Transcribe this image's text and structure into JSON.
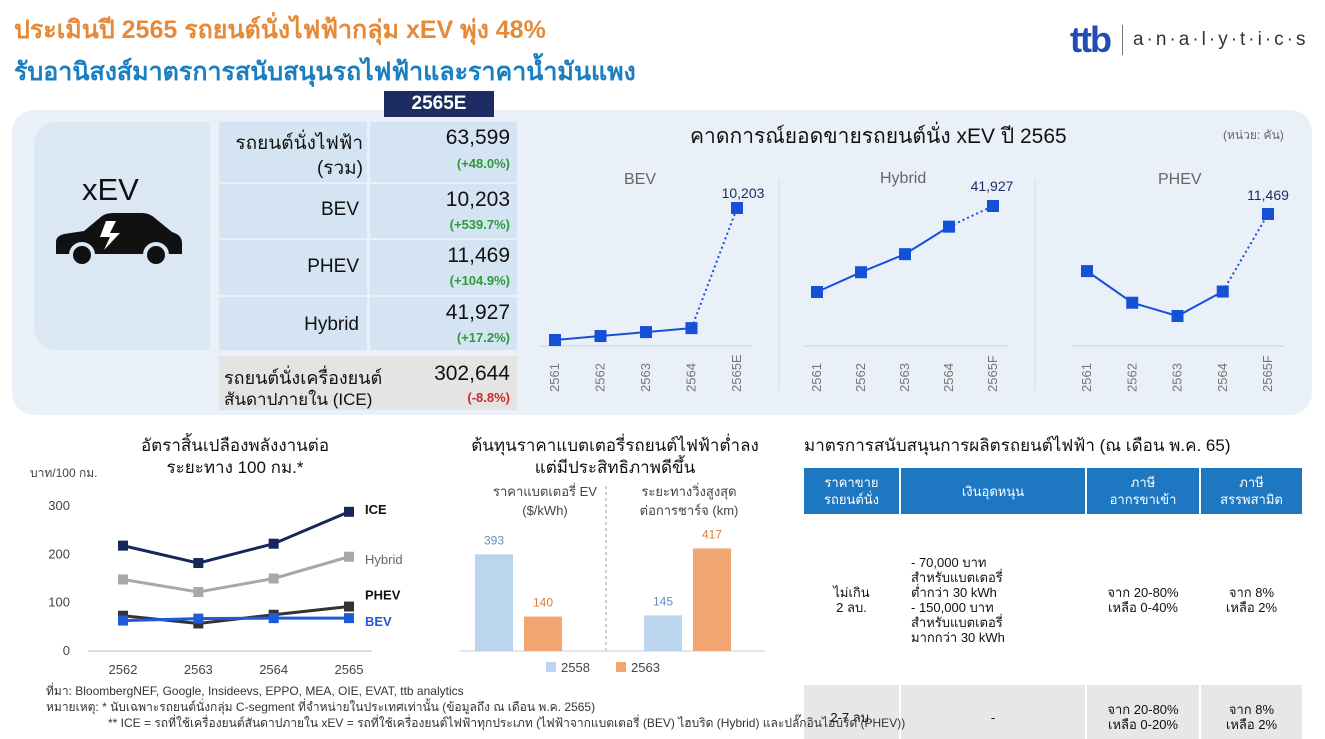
{
  "header": {
    "title": "ประเมินปี 2565 รถยนต์นั่งไฟฟ้ากลุ่ม xEV พุ่ง 48%",
    "subtitle": "รับอานิสงส์มาตรการสนับสนุนรถไฟฟ้าและราคาน้ำมันแพง",
    "brand": "ttb",
    "brand_sub": "a·n·a·l·y·t·i·c·s"
  },
  "summary": {
    "year_badge": "2565E",
    "xev_label": "xEV",
    "icon": "electric-car-icon",
    "rows": [
      {
        "label1": "รถยนต์นั่งไฟฟ้า",
        "label2": "(รวม)",
        "value": "63,599",
        "change": "(+48.0%)"
      },
      {
        "label1": "BEV",
        "label2": "",
        "value": "10,203",
        "change": "(+539.7%)"
      },
      {
        "label1": "PHEV",
        "label2": "",
        "value": "11,469",
        "change": "(+104.9%)"
      },
      {
        "label1": "Hybrid",
        "label2": "",
        "value": "41,927",
        "change": "(+17.2%)"
      },
      {
        "label1": "รถยนต์นั่งเครื่องยนต์",
        "label2": "สันดาปภายใน (ICE)",
        "value": "302,644",
        "change": "(-8.8%)"
      }
    ],
    "colors": {
      "positive": "#2e9a3a",
      "negative": "#d02828"
    }
  },
  "sales_section": {
    "title": "คาดการณ์ยอดขายรถยนต์นั่ง xEV ปี 2565",
    "unit": "(หน่วย: คัน)"
  },
  "fuel_section": {
    "title1": "อัตราสิ้นเปลืองพลังงานต่อ",
    "title2": "ระยะทาง 100 กม.*"
  },
  "battery_section": {
    "title1": "ต้นทุนราคาแบตเตอรี่รถยนต์ไฟฟ้าต่ำลง",
    "title2": "แต่มีประสิทธิภาพดีขึ้น"
  },
  "measures": {
    "title": "มาตรการสนับสนุนการผลิตรถยนต์ไฟฟ้า (ณ เดือน พ.ค. 65)",
    "headers": [
      "ราคาขาย\nรถยนต์นั่ง",
      "เงินอุดหนุน",
      "ภาษี\nอากรขาเข้า",
      "ภาษี\nสรรพสามิต"
    ],
    "rows": [
      {
        "price": "ไม่เกิน\n2 ลบ.",
        "subsidy_lines": [
          "-   70,000 บาท",
          "    สำหรับแบตเตอรี่",
          "    ต่ำกว่า 30 kWh",
          "-   150,000 บาท",
          "    สำหรับแบตเตอรี่",
          "    มากกว่า 30 kWh"
        ],
        "import_tax": "จาก 20-80%\nเหลือ 0-40%",
        "excise_tax": "จาก 8%\nเหลือ 2%"
      },
      {
        "price": "2-7 ลบ.",
        "subsidy_lines": [
          "-"
        ],
        "import_tax": "จาก 20-80%\nเหลือ 0-20%",
        "excise_tax": "จาก 8%\nเหลือ 2%"
      }
    ]
  },
  "footnotes": {
    "source": "ที่มา: BloombergNEF, Google, Insideevs, EPPO, MEA, OIE, EVAT, ttb analytics",
    "note1": "หมายเหตุ: * นับเฉพาะรถยนต์นั่งกลุ่ม C-segment ที่จำหน่ายในประเทศเท่านั้น (ข้อมูลถึง ณ เดือน พ.ค. 2565)",
    "note2": "** ICE = รถที่ใช้เครื่องยนต์สันดาปภายใน xEV = รถที่ใช้เครื่องยนต์ไฟฟ้าทุกประเภท (ไฟฟ้าจากแบตเตอรี่ (BEV) ไฮบริด (Hybrid) และปลั๊กอินไฮบริด (PHEV))"
  },
  "chart_data": [
    {
      "type": "line",
      "title": "BEV",
      "categories": [
        "2561",
        "2562",
        "2563",
        "2564",
        "2565E"
      ],
      "values": [
        null,
        null,
        null,
        null,
        10203
      ],
      "value_labels": [
        "",
        "",
        "",
        "",
        "10,203"
      ],
      "forecast_from_index": 3,
      "color": "#1550d8"
    },
    {
      "type": "line",
      "title": "Hybrid",
      "categories": [
        "2561",
        "2562",
        "2563",
        "2564",
        "2565F"
      ],
      "values": [
        null,
        null,
        null,
        null,
        41927
      ],
      "value_labels": [
        "",
        "",
        "",
        "",
        "41,927"
      ],
      "forecast_from_index": 3,
      "color": "#1550d8"
    },
    {
      "type": "line",
      "title": "PHEV",
      "categories": [
        "2561",
        "2562",
        "2563",
        "2564",
        "2565F"
      ],
      "values": [
        null,
        null,
        null,
        null,
        11469
      ],
      "value_labels": [
        "",
        "",
        "",
        "",
        "11,469"
      ],
      "forecast_from_index": 3,
      "color": "#1550d8"
    },
    {
      "type": "line",
      "title": "",
      "ylabel": "บาท/100 กม.",
      "categories": [
        "2562",
        "2563",
        "2564",
        "2565"
      ],
      "ylim": [
        0,
        300
      ],
      "yticks": [
        0,
        100,
        200,
        300
      ],
      "series": [
        {
          "name": "ICE",
          "values": [
            218,
            182,
            222,
            288
          ],
          "color": "#14285a"
        },
        {
          "name": "Hybrid",
          "values": [
            148,
            122,
            150,
            195
          ],
          "color": "#a8a8a8"
        },
        {
          "name": "PHEV",
          "values": [
            73,
            57,
            75,
            92
          ],
          "color": "#333333"
        },
        {
          "name": "BEV",
          "values": [
            63,
            67,
            68,
            68
          ],
          "color": "#1f5ad8"
        }
      ]
    },
    {
      "type": "bar",
      "groups": [
        {
          "label": "ราคาแบตเตอรี่ EV\n($/kWh)",
          "values": [
            393,
            140
          ],
          "labels": [
            "393",
            "140"
          ]
        },
        {
          "label": "ระยะทางวิ่งสูงสุด\nต่อการชาร์จ (km)",
          "values": [
            145,
            417
          ],
          "labels": [
            "145",
            "417"
          ]
        }
      ],
      "legend": [
        "2558",
        "2563"
      ],
      "colors": [
        "#bcd5ee",
        "#f2a772"
      ]
    }
  ]
}
